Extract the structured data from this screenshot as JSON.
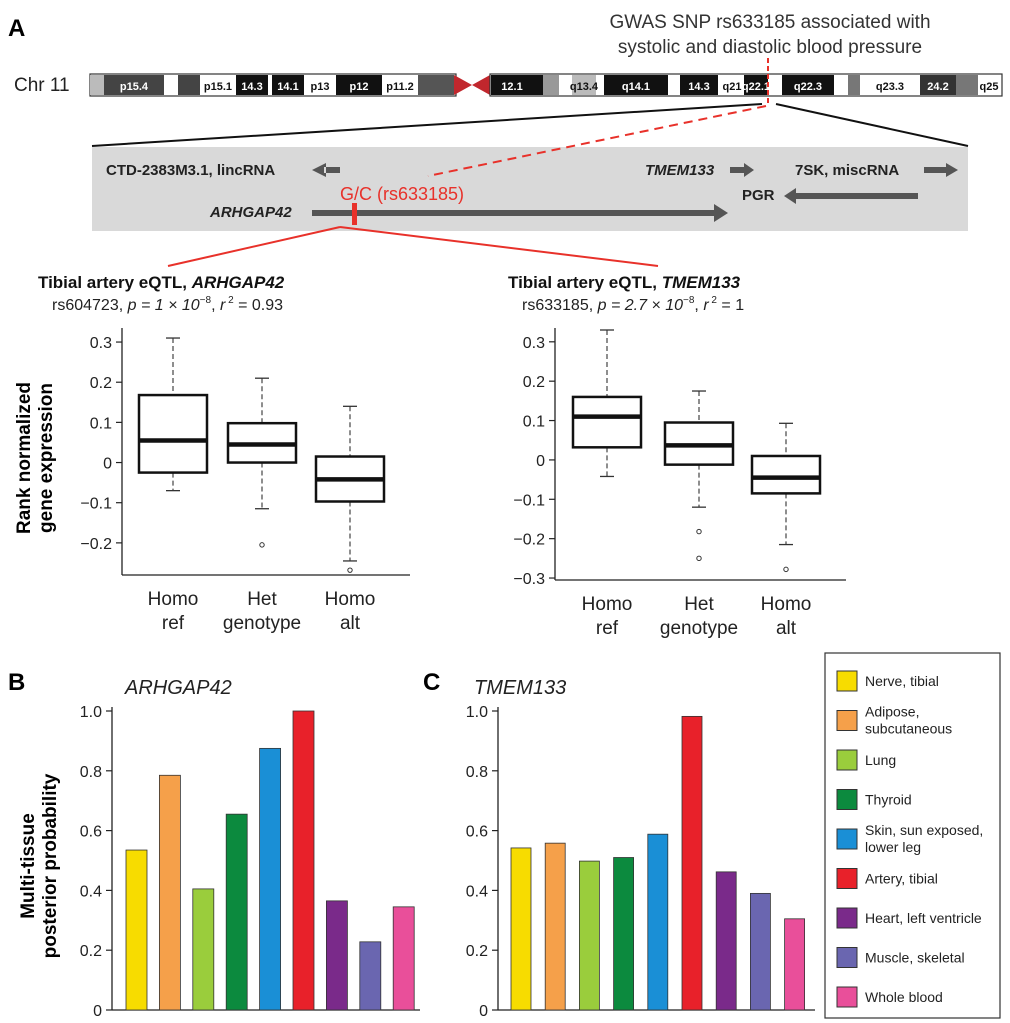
{
  "panel_labels": {
    "a": "A",
    "b": "B",
    "c": "C"
  },
  "gwas_note": {
    "line1": "GWAS SNP rs633185 associated with",
    "line2": "systolic and diastolic blood pressure"
  },
  "chromosome": {
    "label": "Chr 11",
    "bands_left": [
      "p15.4",
      "p15.1",
      "14.3",
      "14.1",
      "p13",
      "p12",
      "p11.2"
    ],
    "bands_right": [
      "12.1",
      "q13.4",
      "q14.1",
      "14.3",
      "q21",
      "q22.1",
      "q22.3",
      "q23.3",
      "24.2",
      "q25"
    ]
  },
  "locus": {
    "lincrna": "CTD-2383M3.1, lincRNA",
    "tmem": "TMEM133",
    "sevensk": "7SK, miscRNA",
    "pgr": "PGR",
    "arhgap": "ARHGAP42",
    "snp": "G/C (rs633185)"
  },
  "y_axis_label": {
    "line1": "Rank normalized",
    "line2": "gene expression"
  },
  "chart_data": [
    {
      "type": "box",
      "title_prefix": "Tibial artery eQTL, ",
      "title_gene": "ARHGAP42",
      "stats": {
        "snp": "rs604723",
        "p_pre": "p = 1 × 10",
        "p_exp": "−8",
        "r_val": " = 0.93"
      },
      "ylim": [
        -0.27,
        0.33
      ],
      "yticks": [
        0.3,
        0.2,
        0.1,
        0,
        -0.1,
        -0.2
      ],
      "ytick_labels": [
        "0.3",
        "0.2",
        "0.1",
        "0",
        "−0.1",
        "−0.2"
      ],
      "categories": [
        {
          "line1": "Homo",
          "line2": "ref"
        },
        {
          "line1": "Het",
          "line2": "genotype"
        },
        {
          "line1": "Homo",
          "line2": "alt"
        }
      ],
      "boxes": [
        {
          "whisker_low": -0.07,
          "q1": -0.025,
          "median": 0.055,
          "q3": 0.168,
          "whisker_high": 0.31,
          "outliers": []
        },
        {
          "whisker_low": -0.115,
          "q1": 0.0,
          "median": 0.045,
          "q3": 0.098,
          "whisker_high": 0.21,
          "outliers": [
            -0.205
          ]
        },
        {
          "whisker_low": -0.245,
          "q1": -0.097,
          "median": -0.042,
          "q3": 0.015,
          "whisker_high": 0.14,
          "outliers": [
            -0.268
          ]
        }
      ]
    },
    {
      "type": "box",
      "title_prefix": "Tibial artery eQTL, ",
      "title_gene": "TMEM133",
      "stats": {
        "snp": "rs633185",
        "p_pre": "p = 2.7 × 10",
        "p_exp": "−8",
        "r_val": " = 1"
      },
      "ylim": [
        -0.3,
        0.33
      ],
      "yticks": [
        0.3,
        0.2,
        0.1,
        0,
        -0.1,
        -0.2,
        -0.3
      ],
      "ytick_labels": [
        "0.3",
        "0.2",
        "0.1",
        "0",
        "−0.1",
        "−0.2",
        "−0.3"
      ],
      "categories": [
        {
          "line1": "Homo",
          "line2": "ref"
        },
        {
          "line1": "Het",
          "line2": "genotype"
        },
        {
          "line1": "Homo",
          "line2": "alt"
        }
      ],
      "boxes": [
        {
          "whisker_low": -0.042,
          "q1": 0.032,
          "median": 0.11,
          "q3": 0.16,
          "whisker_high": 0.33,
          "outliers": []
        },
        {
          "whisker_low": -0.12,
          "q1": -0.012,
          "median": 0.037,
          "q3": 0.095,
          "whisker_high": 0.175,
          "outliers": [
            -0.182,
            -0.25
          ]
        },
        {
          "whisker_low": -0.215,
          "q1": -0.085,
          "median": -0.045,
          "q3": 0.01,
          "whisker_high": 0.093,
          "outliers": [
            -0.278
          ]
        }
      ]
    },
    {
      "type": "bar",
      "title": "ARHGAP42",
      "ylabel_line1": "Multi-tissue",
      "ylabel_line2": "posterior probability",
      "ylim": [
        0,
        1.0
      ],
      "ytick_labels": [
        "0",
        "0.2",
        "0.4",
        "0.6",
        "0.8",
        "1.0"
      ],
      "categories": [
        "Nerve, tibial",
        "Adipose, subcutaneous",
        "Lung",
        "Thyroid",
        "Skin, sun exposed, lower leg",
        "Artery, tibial",
        "Heart, left ventricle",
        "Muscle, skeletal",
        "Whole blood"
      ],
      "values": [
        0.535,
        0.785,
        0.405,
        0.655,
        0.875,
        1.0,
        0.365,
        0.228,
        0.345
      ]
    },
    {
      "type": "bar",
      "title": "TMEM133",
      "ylim": [
        0,
        1.0
      ],
      "ytick_labels": [
        "0",
        "0.2",
        "0.4",
        "0.6",
        "0.8",
        "1.0"
      ],
      "categories": [
        "Nerve, tibial",
        "Adipose, subcutaneous",
        "Lung",
        "Thyroid",
        "Skin, sun exposed, lower leg",
        "Artery, tibial",
        "Heart, left ventricle",
        "Muscle, skeletal",
        "Whole blood"
      ],
      "values": [
        0.542,
        0.558,
        0.498,
        0.51,
        0.588,
        0.982,
        0.462,
        0.39,
        0.305
      ]
    }
  ],
  "legend": {
    "items": [
      {
        "line1": "Nerve, tibial",
        "line2": "",
        "color": "#f7dc00"
      },
      {
        "line1": "Adipose,",
        "line2": "subcutaneous",
        "color": "#f5a04a"
      },
      {
        "line1": "Lung",
        "line2": "",
        "color": "#9acd3c"
      },
      {
        "line1": "Thyroid",
        "line2": "",
        "color": "#0c8a3e"
      },
      {
        "line1": "Skin, sun exposed,",
        "line2": "lower leg",
        "color": "#1a8fd6"
      },
      {
        "line1": "Artery, tibial",
        "line2": "",
        "color": "#e8212a"
      },
      {
        "line1": "Heart, left ventricle",
        "line2": "",
        "color": "#7a2a8a"
      },
      {
        "line1": "Muscle, skeletal",
        "line2": "",
        "color": "#6a66b0"
      },
      {
        "line1": "Whole blood",
        "line2": "",
        "color": "#e94f9a"
      }
    ]
  },
  "colors": {
    "snp_red": "#e8312a",
    "locus_bg": "#d9d9d9",
    "arrow_gray": "#555555"
  }
}
